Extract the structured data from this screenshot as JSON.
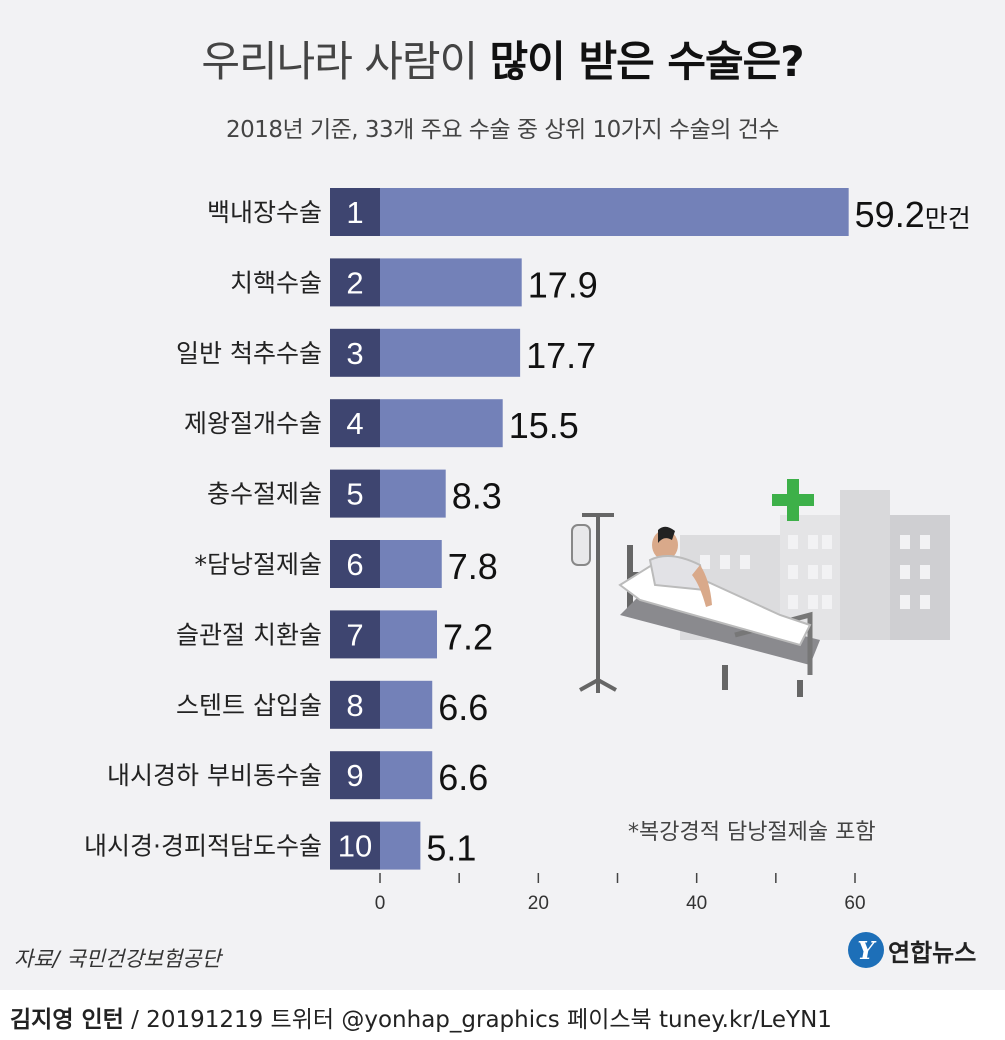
{
  "title_plain": "우리나라 사람이 ",
  "title_bold": "많이 받은 수술은?",
  "subtitle": "2018년 기준, 33개 주요 수술 중 상위 10가지 수술의 건수",
  "unit": "만건",
  "footnote": "*복강경적 담낭절제술 포함",
  "source": "자료/ 국민건강보험공단",
  "logo": {
    "mark": "Y",
    "text": "연합뉴스"
  },
  "credit": {
    "author": "김지영 인턴",
    "rest": " / 20191219  트위터 @yonhap_graphics  페이스북 tuney.kr/LeYN1"
  },
  "colors": {
    "bar": "#7381b8",
    "rank_box": "#3e4570",
    "background": "#f2f2f4",
    "cross": "#3db049"
  },
  "icons": [
    "hospital-building-icon",
    "medical-cross-icon",
    "hospital-bed-icon",
    "patient-icon",
    "iv-stand-icon"
  ],
  "chart_data": {
    "type": "bar",
    "orientation": "horizontal",
    "categories": [
      "백내장수술",
      "치핵수술",
      "일반 척추수술",
      "제왕절개수술",
      "충수절제술",
      "*담낭절제술",
      "슬관절 치환술",
      "스텐트 삽입술",
      "내시경하 부비동수술",
      "내시경·경피적담도수술"
    ],
    "ranks": [
      "1",
      "2",
      "3",
      "4",
      "5",
      "6",
      "7",
      "8",
      "9",
      "10"
    ],
    "values": [
      59.2,
      17.9,
      17.7,
      15.5,
      8.3,
      7.8,
      7.2,
      6.6,
      6.6,
      5.1
    ],
    "value_labels": [
      "59.2",
      "17.9",
      "17.7",
      "15.5",
      "8.3",
      "7.8",
      "7.2",
      "6.6",
      "6.6",
      "5.1"
    ],
    "first_label_unit": "만건",
    "xlim": [
      0,
      60
    ],
    "xticks": [
      0,
      20,
      40,
      60
    ],
    "minor_ticks": [
      10,
      30,
      50
    ],
    "grid": false
  }
}
